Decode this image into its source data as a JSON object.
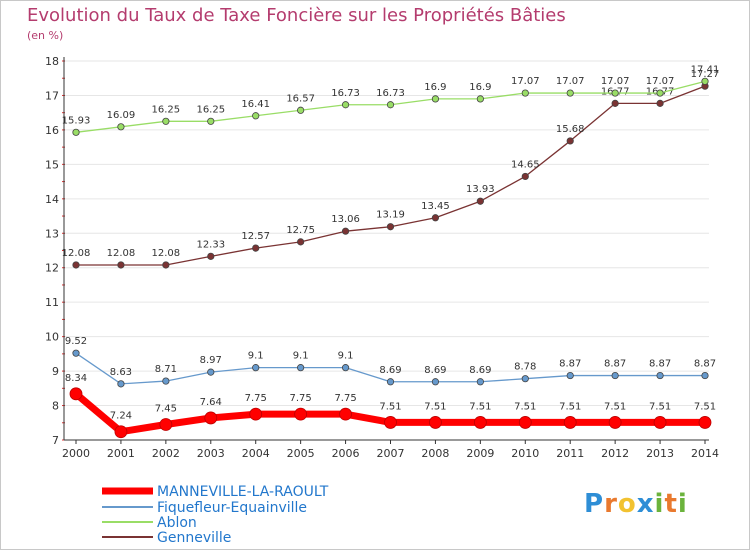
{
  "chart_data": {
    "type": "line",
    "title": "Evolution du Taux de Taxe Foncière sur les Propriétés Bâties",
    "ylabel": "(en %)",
    "xlabel": "",
    "ylim": [
      7,
      18
    ],
    "yticks": [
      7,
      8,
      9,
      10,
      11,
      12,
      13,
      14,
      15,
      16,
      17,
      18
    ],
    "categories": [
      "2000",
      "2001",
      "2002",
      "2003",
      "2004",
      "2005",
      "2006",
      "2007",
      "2008",
      "2009",
      "2010",
      "2011",
      "2012",
      "2013",
      "2014"
    ],
    "series": [
      {
        "name": "MANNEVILLE-LA-RAOULT",
        "color": "#ff0000",
        "values": [
          8.34,
          7.24,
          7.45,
          7.64,
          7.75,
          7.75,
          7.75,
          7.51,
          7.51,
          7.51,
          7.51,
          7.51,
          7.51,
          7.51,
          7.51
        ],
        "labels": [
          "8.34",
          "7.24",
          "7.45",
          "7.64",
          "7.75",
          "7.75",
          "7.75",
          "7.51",
          "7.51",
          "7.51",
          "7.51",
          "7.51",
          "7.51",
          "7.51",
          "7.51"
        ]
      },
      {
        "name": "Fiquefleur-Équainville",
        "color": "#6699cc",
        "values": [
          9.52,
          8.63,
          8.71,
          8.97,
          9.1,
          9.1,
          9.1,
          8.69,
          8.69,
          8.69,
          8.78,
          8.87,
          8.87,
          8.87,
          8.87
        ],
        "labels": [
          "9.52",
          "8.63",
          "8.71",
          "8.97",
          "9.1",
          "9.1",
          "9.1",
          "8.69",
          "8.69",
          "8.69",
          "8.78",
          "8.87",
          "8.87",
          "8.87",
          "8.87"
        ]
      },
      {
        "name": "Ablon",
        "color": "#99dd66",
        "values": [
          15.93,
          16.09,
          16.25,
          16.25,
          16.41,
          16.57,
          16.73,
          16.73,
          16.9,
          16.9,
          17.07,
          17.07,
          17.07,
          17.07,
          17.41
        ],
        "labels": [
          "15.93",
          "16.09",
          "16.25",
          "16.25",
          "16.41",
          "16.57",
          "16.73",
          "16.73",
          "16.9",
          "16.9",
          "17.07",
          "17.07",
          "17.07",
          "17.07",
          "17.41"
        ]
      },
      {
        "name": "Genneville",
        "color": "#7a3333",
        "values": [
          12.08,
          12.08,
          12.08,
          12.33,
          12.57,
          12.75,
          13.06,
          13.19,
          13.45,
          13.93,
          14.65,
          15.68,
          16.77,
          16.77,
          17.27
        ],
        "labels": [
          "12.08",
          "12.08",
          "12.08",
          "12.33",
          "12.57",
          "12.75",
          "13.06",
          "13.19",
          "13.45",
          "13.93",
          "14.65",
          "15.68",
          "16.77",
          "16.77",
          "17.27"
        ]
      }
    ],
    "legend": [
      "MANNEVILLE-LA-RAOULT",
      "Fiquefleur-Equainville",
      "Ablon",
      "Genneville"
    ],
    "grid": true
  },
  "logo": {
    "letters": [
      "P",
      "r",
      "o",
      "x",
      "i",
      "t",
      "i"
    ],
    "colors": [
      "#2e8ed6",
      "#e9792e",
      "#f2c230",
      "#2e8ed6",
      "#6bb33c",
      "#e9792e",
      "#6bb33c"
    ]
  }
}
